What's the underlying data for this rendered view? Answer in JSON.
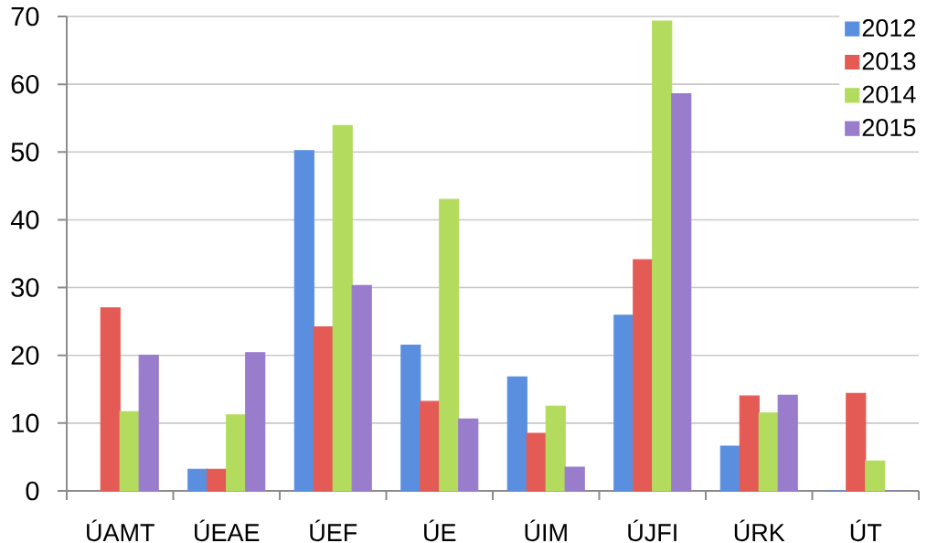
{
  "chart_data": {
    "type": "bar",
    "categories": [
      "ÚAMT",
      "ÚEAE",
      "ÚEF",
      "ÚE",
      "ÚIM",
      "ÚJFI",
      "ÚRK",
      "ÚT"
    ],
    "series": [
      {
        "name": "2012",
        "color": "#5a8fe0",
        "values": [
          null,
          3.2,
          50.2,
          21.5,
          16.8,
          25.9,
          6.6,
          0
        ]
      },
      {
        "name": "2013",
        "color": "#e45b55",
        "values": [
          27,
          3.2,
          24.2,
          13.2,
          8.5,
          34.1,
          14,
          14.4
        ]
      },
      {
        "name": "2014",
        "color": "#b3dc5e",
        "values": [
          11.7,
          11.2,
          53.9,
          43,
          12.5,
          69.3,
          11.5,
          4.4
        ]
      },
      {
        "name": "2015",
        "color": "#9a7ccd",
        "values": [
          20,
          20.4,
          30.3,
          10.6,
          3.5,
          58.6,
          14.1,
          0
        ]
      }
    ],
    "ylim": [
      0,
      70
    ],
    "yticks": [
      0,
      10,
      20,
      30,
      40,
      50,
      60,
      70
    ],
    "grid": "y",
    "legend": "top right"
  }
}
